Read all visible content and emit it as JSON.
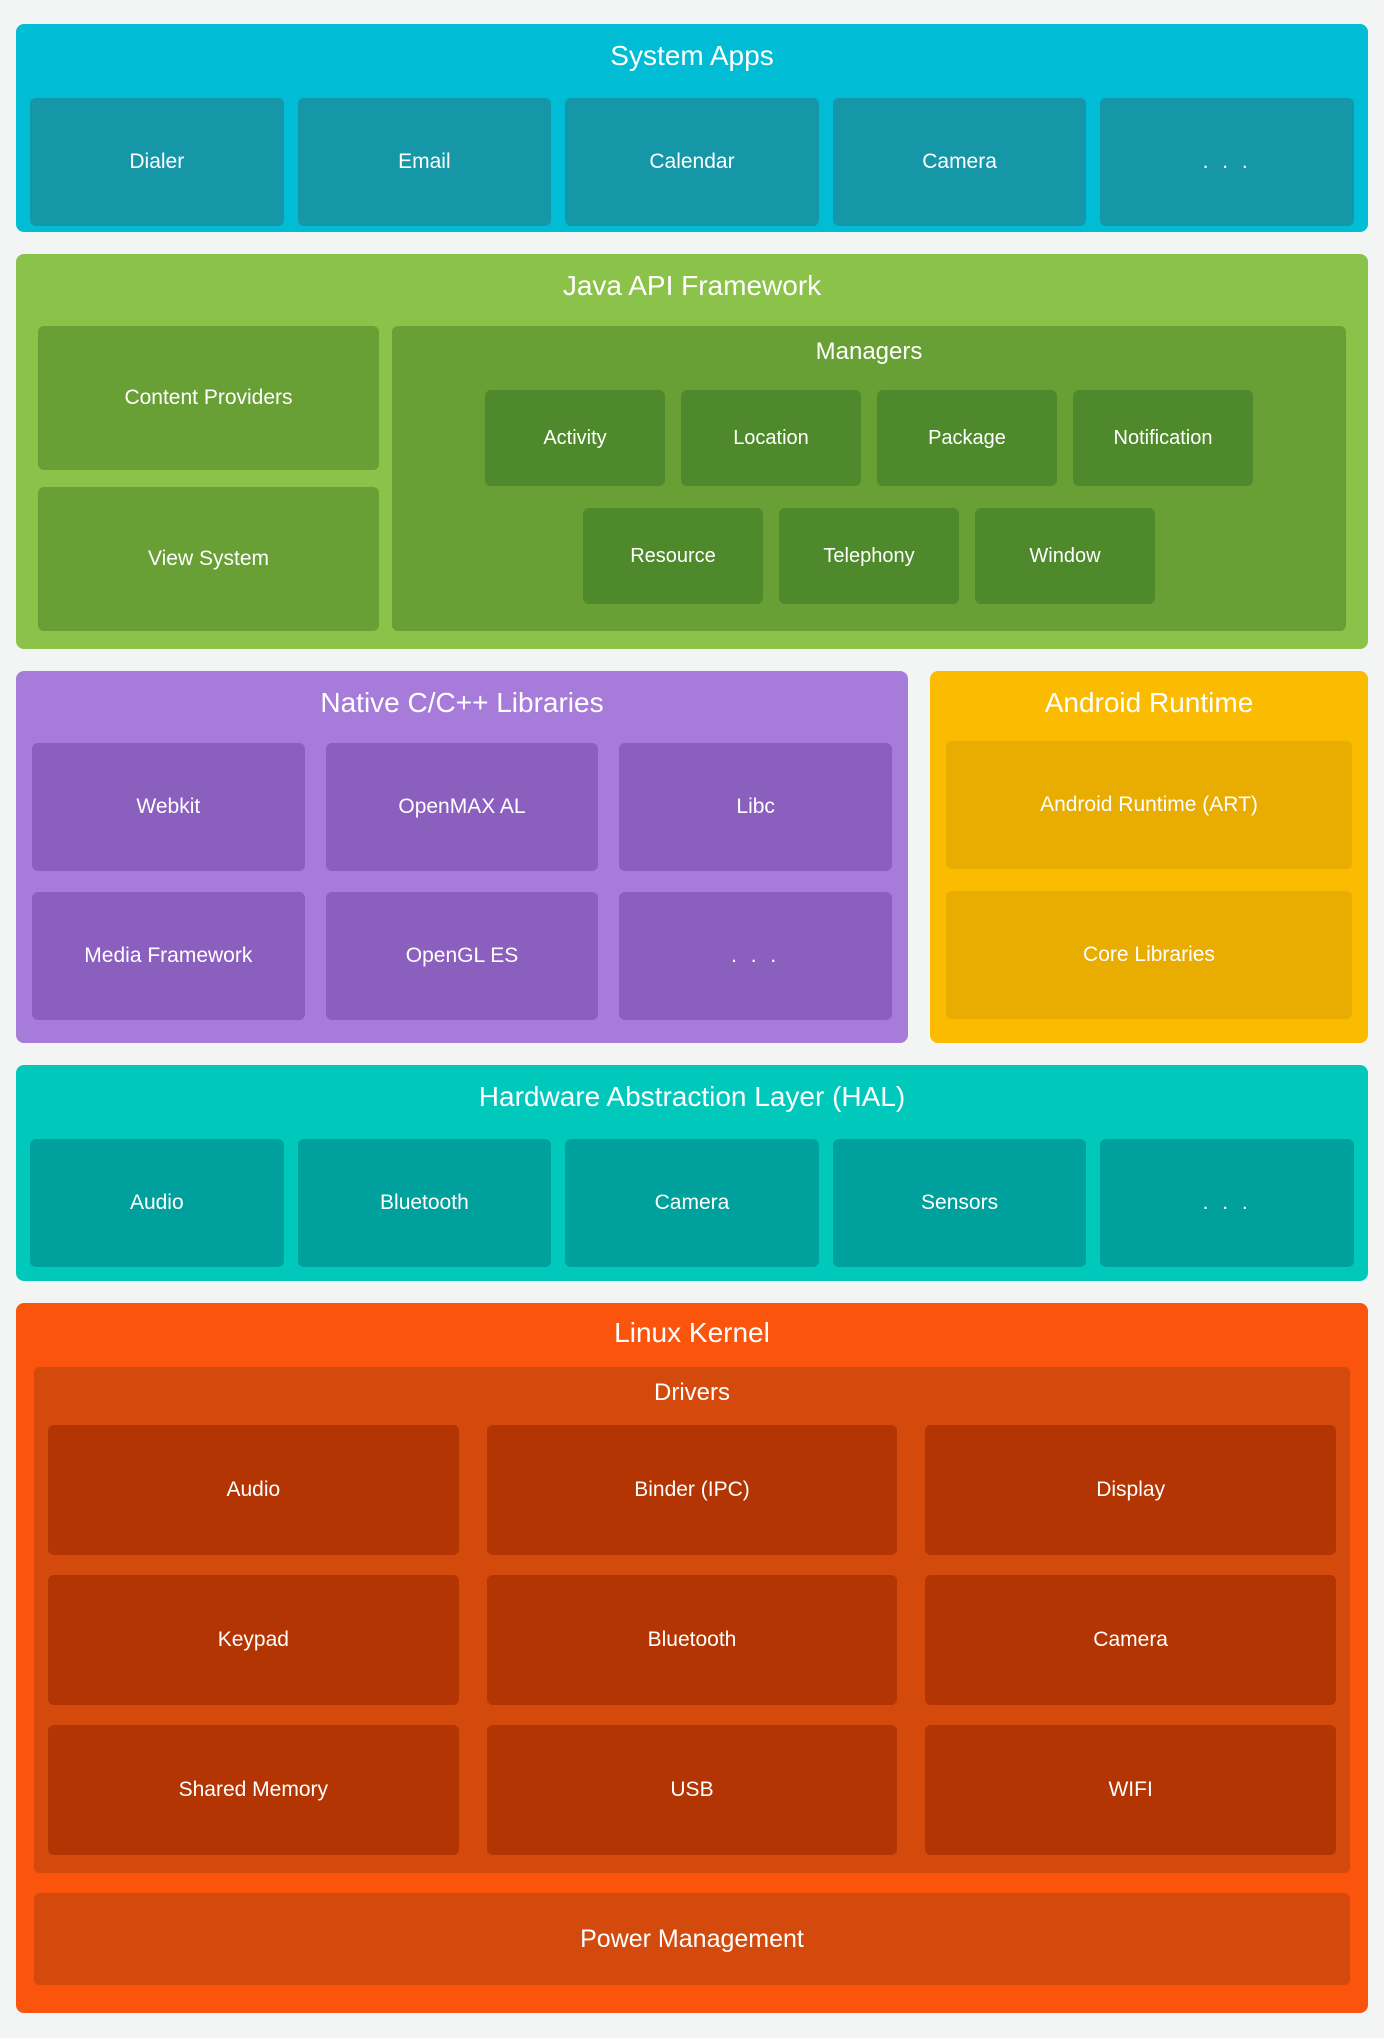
{
  "palette": {
    "page_bg": "#F3F4F4",
    "text": "#FFFFFF",
    "system_apps_bg": "#00BCD4",
    "system_apps_box": "#1697A8",
    "java_bg": "#8BC34A",
    "java_box": "#68A036",
    "java_chip": "#4E8A2C",
    "native_bg": "#A77BD9",
    "native_box": "#8A5FBE",
    "runtime_bg": "#FBBB00",
    "runtime_box": "#E9AC00",
    "hal_bg": "#00C9BC",
    "hal_box": "#00A09C",
    "kernel_bg": "#FB540D",
    "kernel_panel": "#D44A0D",
    "kernel_chip": "#B23503"
  },
  "sections": {
    "system_apps": {
      "title": "System Apps",
      "items": [
        "Dialer",
        "Email",
        "Calendar",
        "Camera",
        ". . ."
      ]
    },
    "java_api": {
      "title": "Java API Framework",
      "left_items": [
        "Content Providers",
        "View System"
      ],
      "managers": {
        "title": "Managers",
        "row1": [
          "Activity",
          "Location",
          "Package",
          "Notification"
        ],
        "row2": [
          "Resource",
          "Telephony",
          "Window"
        ]
      }
    },
    "native_libs": {
      "title": "Native C/C++ Libraries",
      "items": [
        "Webkit",
        "OpenMAX AL",
        "Libc",
        "Media Framework",
        "OpenGL ES",
        ". . ."
      ]
    },
    "android_runtime": {
      "title": "Android Runtime",
      "items": [
        "Android Runtime (ART)",
        "Core Libraries"
      ]
    },
    "hal": {
      "title": "Hardware Abstraction Layer (HAL)",
      "items": [
        "Audio",
        "Bluetooth",
        "Camera",
        "Sensors",
        ". . ."
      ]
    },
    "linux_kernel": {
      "title": "Linux Kernel",
      "drivers": {
        "title": "Drivers",
        "items": [
          "Audio",
          "Binder (IPC)",
          "Display",
          "Keypad",
          "Bluetooth",
          "Camera",
          "Shared Memory",
          "USB",
          "WIFI"
        ]
      },
      "power_label": "Power Management"
    }
  }
}
